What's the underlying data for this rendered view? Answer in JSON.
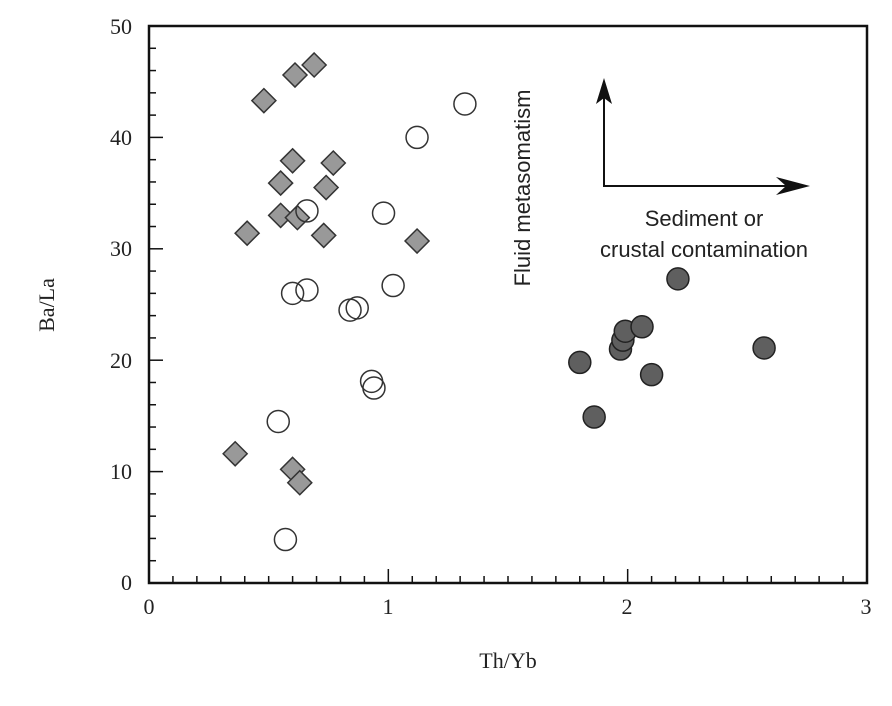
{
  "chart_data": {
    "type": "scatter",
    "title": "",
    "xlabel": "Th/Yb",
    "ylabel": "Ba/La",
    "xlim": [
      0,
      3
    ],
    "ylim": [
      0,
      50
    ],
    "x_ticks": [
      "0",
      "1",
      "2",
      "3"
    ],
    "y_ticks": [
      "0",
      "10",
      "20",
      "30",
      "40",
      "50"
    ],
    "grid": false,
    "annotations": {
      "vertical_arrow_label": "Fluid metasomatism",
      "horizontal_arrow_label_line1": "Sediment or",
      "horizontal_arrow_label_line2": "crustal contamination"
    },
    "series": [
      {
        "name": "gray diamonds",
        "marker": "diamond",
        "color": "#999999",
        "points": [
          [
            0.48,
            43.3
          ],
          [
            0.61,
            45.6
          ],
          [
            0.69,
            46.5
          ],
          [
            0.6,
            37.9
          ],
          [
            0.77,
            37.7
          ],
          [
            0.55,
            35.9
          ],
          [
            0.74,
            35.5
          ],
          [
            0.55,
            33.0
          ],
          [
            0.62,
            32.8
          ],
          [
            0.41,
            31.4
          ],
          [
            0.73,
            31.2
          ],
          [
            1.12,
            30.7
          ],
          [
            0.36,
            11.6
          ],
          [
            0.6,
            10.2
          ],
          [
            0.63,
            9.0
          ]
        ]
      },
      {
        "name": "open circles",
        "marker": "open-circle",
        "color": "#ffffff",
        "points": [
          [
            1.32,
            43.0
          ],
          [
            1.12,
            40.0
          ],
          [
            0.66,
            33.4
          ],
          [
            0.98,
            33.2
          ],
          [
            0.6,
            26.0
          ],
          [
            0.66,
            26.3
          ],
          [
            1.02,
            26.7
          ],
          [
            0.84,
            24.5
          ],
          [
            0.87,
            24.7
          ],
          [
            0.93,
            18.1
          ],
          [
            0.94,
            17.5
          ],
          [
            0.54,
            14.5
          ],
          [
            0.57,
            3.9
          ]
        ]
      },
      {
        "name": "dark filled circles",
        "marker": "filled-circle",
        "color": "#5f5f5f",
        "points": [
          [
            2.21,
            27.3
          ],
          [
            1.8,
            19.8
          ],
          [
            1.86,
            14.9
          ],
          [
            1.97,
            21.0
          ],
          [
            1.98,
            21.8
          ],
          [
            1.99,
            22.6
          ],
          [
            2.06,
            23.0
          ],
          [
            2.1,
            18.7
          ],
          [
            2.57,
            21.1
          ]
        ]
      }
    ]
  }
}
